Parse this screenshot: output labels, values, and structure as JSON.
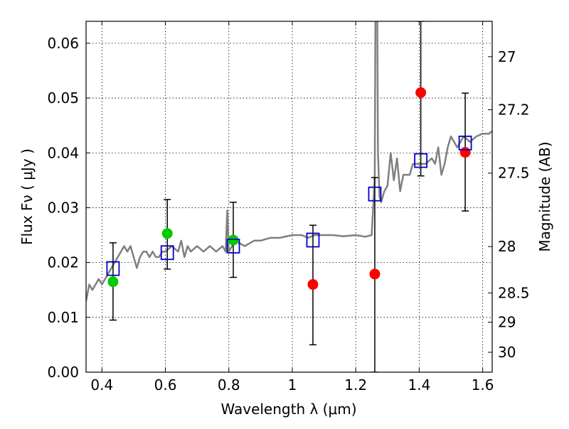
{
  "chart_data": {
    "type": "scatter",
    "xlabel": "Wavelength  λ (μm)",
    "ylabel": "Flux  Fν  ( μJy )",
    "y2label": "Magnitude (AB)",
    "xlim": [
      0.35,
      1.63
    ],
    "ylim": [
      0.0,
      0.064
    ],
    "grid": true,
    "x_ticks": [
      {
        "value": 0.4,
        "label": "0.4"
      },
      {
        "value": 0.6,
        "label": "0.6"
      },
      {
        "value": 0.8,
        "label": "0.8"
      },
      {
        "value": 1.0,
        "label": "1"
      },
      {
        "value": 1.2,
        "label": "1.2"
      },
      {
        "value": 1.4,
        "label": "1.4"
      },
      {
        "value": 1.6,
        "label": "1.6"
      }
    ],
    "y_ticks": [
      {
        "value": 0.0,
        "label": "0.00"
      },
      {
        "value": 0.01,
        "label": "0.01"
      },
      {
        "value": 0.02,
        "label": "0.02"
      },
      {
        "value": 0.03,
        "label": "0.03"
      },
      {
        "value": 0.04,
        "label": "0.04"
      },
      {
        "value": 0.05,
        "label": "0.05"
      },
      {
        "value": 0.06,
        "label": "0.06"
      }
    ],
    "magnitude_ticks": [
      {
        "value": 27.0,
        "label": "27"
      },
      {
        "value": 27.2,
        "label": "27.2"
      },
      {
        "value": 27.5,
        "label": "27.5"
      },
      {
        "value": 28.0,
        "label": "28"
      },
      {
        "value": 28.5,
        "label": "28.5"
      },
      {
        "value": 29.0,
        "label": "29"
      },
      {
        "value": 30.0,
        "label": "30"
      }
    ],
    "model_spectrum": {
      "color": "#808080",
      "x": [
        0.35,
        0.36,
        0.37,
        0.38,
        0.39,
        0.4,
        0.41,
        0.42,
        0.43,
        0.44,
        0.45,
        0.46,
        0.47,
        0.48,
        0.49,
        0.5,
        0.51,
        0.52,
        0.53,
        0.54,
        0.55,
        0.56,
        0.57,
        0.58,
        0.59,
        0.6,
        0.62,
        0.64,
        0.65,
        0.66,
        0.67,
        0.68,
        0.7,
        0.72,
        0.74,
        0.76,
        0.78,
        0.79,
        0.795,
        0.8,
        0.82,
        0.85,
        0.88,
        0.9,
        0.93,
        0.96,
        1.0,
        1.03,
        1.05,
        1.07,
        1.1,
        1.13,
        1.16,
        1.2,
        1.23,
        1.25,
        1.255,
        1.26,
        1.262,
        1.265,
        1.268,
        1.27,
        1.275,
        1.28,
        1.29,
        1.3,
        1.31,
        1.32,
        1.33,
        1.34,
        1.35,
        1.36,
        1.37,
        1.38,
        1.4,
        1.42,
        1.44,
        1.45,
        1.46,
        1.47,
        1.48,
        1.49,
        1.5,
        1.52,
        1.54,
        1.56,
        1.58,
        1.6,
        1.62,
        1.63
      ],
      "y": [
        0.013,
        0.016,
        0.015,
        0.016,
        0.017,
        0.016,
        0.017,
        0.018,
        0.019,
        0.02,
        0.021,
        0.022,
        0.023,
        0.022,
        0.023,
        0.021,
        0.019,
        0.021,
        0.022,
        0.022,
        0.021,
        0.022,
        0.021,
        0.021,
        0.022,
        0.022,
        0.023,
        0.022,
        0.024,
        0.021,
        0.023,
        0.022,
        0.023,
        0.022,
        0.023,
        0.022,
        0.023,
        0.022,
        0.0295,
        0.022,
        0.024,
        0.023,
        0.024,
        0.024,
        0.0245,
        0.0245,
        0.025,
        0.025,
        0.0245,
        0.025,
        0.025,
        0.025,
        0.0248,
        0.025,
        0.0247,
        0.025,
        0.03,
        0.036,
        0.064,
        0.064,
        0.064,
        0.04,
        0.032,
        0.031,
        0.033,
        0.034,
        0.04,
        0.035,
        0.039,
        0.033,
        0.036,
        0.036,
        0.036,
        0.038,
        0.038,
        0.038,
        0.039,
        0.038,
        0.041,
        0.036,
        0.038,
        0.041,
        0.043,
        0.041,
        0.043,
        0.042,
        0.043,
        0.0435,
        0.0435,
        0.044
      ]
    },
    "observed_green": {
      "color": "#00cc00",
      "points": [
        {
          "x": 0.435,
          "y": 0.0165
        },
        {
          "x": 0.606,
          "y": 0.0253
        },
        {
          "x": 0.814,
          "y": 0.0241
        }
      ]
    },
    "observed_red": {
      "color": "#ff0000",
      "points": [
        {
          "x": 1.065,
          "y": 0.016
        },
        {
          "x": 1.26,
          "y": 0.0179
        },
        {
          "x": 1.405,
          "y": 0.051
        },
        {
          "x": 1.545,
          "y": 0.0401
        }
      ]
    },
    "error_bars": {
      "color": "#000000",
      "items": [
        {
          "x": 0.435,
          "low": 0.0095,
          "high": 0.0236
        },
        {
          "x": 0.606,
          "low": 0.0188,
          "high": 0.0315
        },
        {
          "x": 0.814,
          "low": 0.0173,
          "high": 0.031
        },
        {
          "x": 1.065,
          "low": 0.005,
          "high": 0.0268
        },
        {
          "x": 1.26,
          "low": 0.0,
          "high": 0.0355
        },
        {
          "x": 1.405,
          "low": 0.0358,
          "high": 0.064
        },
        {
          "x": 1.545,
          "low": 0.0294,
          "high": 0.0509
        }
      ]
    },
    "model_photometry": {
      "color": "#0000cc",
      "points": [
        {
          "x": 0.435,
          "y": 0.0189
        },
        {
          "x": 0.606,
          "y": 0.0218
        },
        {
          "x": 0.814,
          "y": 0.023
        },
        {
          "x": 1.065,
          "y": 0.0241
        },
        {
          "x": 1.26,
          "y": 0.0325
        },
        {
          "x": 1.405,
          "y": 0.0386
        },
        {
          "x": 1.545,
          "y": 0.0418
        }
      ]
    }
  }
}
